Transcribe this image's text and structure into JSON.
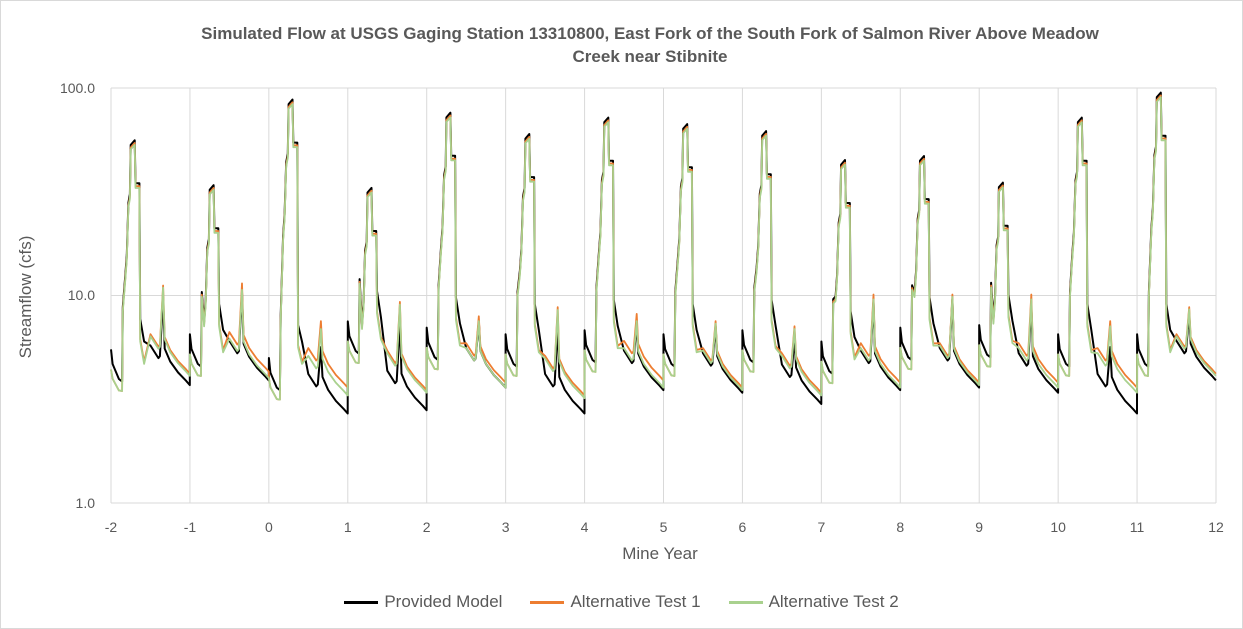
{
  "chart_data": {
    "type": "line",
    "title_line1": "Simulated Flow at USGS Gaging Station 13310800, East Fork of the South Fork of Salmon River Above Meadow",
    "title_line2": "Creek near Stibnite",
    "xlabel": "Mine Year",
    "ylabel": "Streamflow (cfs)",
    "yscale": "log",
    "ylim": [
      1.0,
      100.0
    ],
    "xlim": [
      -2,
      12
    ],
    "y_tick_labels": [
      "100.0",
      "10.0",
      "1.0"
    ],
    "x_tick_labels": [
      "-2",
      "-1",
      "0",
      "1",
      "2",
      "3",
      "4",
      "5",
      "6",
      "7",
      "8",
      "9",
      "10",
      "11",
      "12"
    ],
    "grid": true,
    "legend_position": "bottom",
    "series": [
      {
        "name": "Provided Model",
        "color": "#000000"
      },
      {
        "name": "Alternative Test 1",
        "color": "#ed7d31"
      },
      {
        "name": "Alternative Test 2",
        "color": "#a9d18e"
      }
    ],
    "years": [
      {
        "start": -2,
        "base": 5.5,
        "low": 3.7,
        "peak": 56,
        "low1": 4.2,
        "low2": 4.1
      },
      {
        "start": -1,
        "base": 6.5,
        "low": 3.9,
        "peak": 34,
        "low1": 4.3,
        "low2": 4.0
      },
      {
        "start": 0,
        "base": 5.0,
        "low": 2.7,
        "peak": 88,
        "low1": 3.6,
        "low2": 3.3
      },
      {
        "start": 1,
        "base": 7.5,
        "low": 2.8,
        "peak": 33,
        "low1": 3.5,
        "low2": 3.4
      },
      {
        "start": 2,
        "base": 7.0,
        "low": 3.6,
        "peak": 76,
        "low1": 3.8,
        "low2": 3.6
      },
      {
        "start": 3,
        "base": 6.5,
        "low": 2.7,
        "peak": 60,
        "low1": 3.3,
        "low2": 3.2
      },
      {
        "start": 4,
        "base": 6.8,
        "low": 3.5,
        "peak": 72,
        "low1": 3.9,
        "low2": 3.6
      },
      {
        "start": 5,
        "base": 6.5,
        "low": 3.4,
        "peak": 67,
        "low1": 3.6,
        "low2": 3.5
      },
      {
        "start": 6,
        "base": 6.8,
        "low": 3.0,
        "peak": 62,
        "low1": 3.4,
        "low2": 3.3
      },
      {
        "start": 7,
        "base": 6.0,
        "low": 3.5,
        "peak": 45,
        "low1": 3.8,
        "low2": 3.6
      },
      {
        "start": 8,
        "base": 7.0,
        "low": 3.6,
        "peak": 47,
        "low1": 3.8,
        "low2": 3.7
      },
      {
        "start": 9,
        "base": 7.2,
        "low": 3.4,
        "peak": 35,
        "low1": 3.8,
        "low2": 3.6
      },
      {
        "start": 10,
        "base": 6.5,
        "low": 2.7,
        "peak": 72,
        "low1": 3.6,
        "low2": 3.4
      },
      {
        "start": 11,
        "base": 6.5,
        "low": 3.9,
        "peak": 95,
        "low1": 4.2,
        "low2": 4.1
      }
    ]
  }
}
